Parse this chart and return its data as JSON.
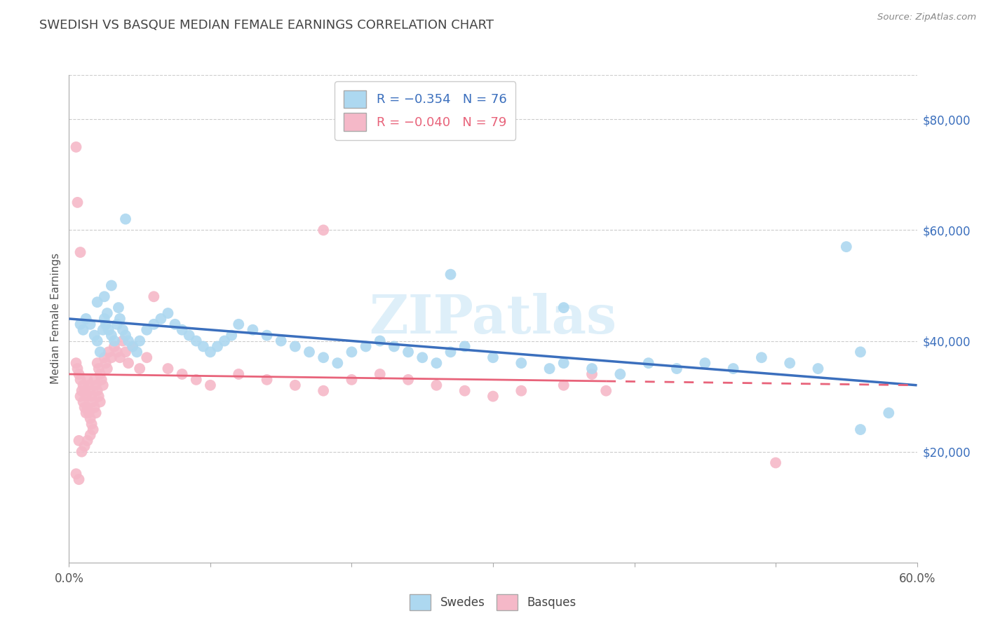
{
  "title": "SWEDISH VS BASQUE MEDIAN FEMALE EARNINGS CORRELATION CHART",
  "source": "Source: ZipAtlas.com",
  "ylabel": "Median Female Earnings",
  "watermark": "ZIPatlas",
  "legend_swedes": "R = −0.354   N = 76",
  "legend_basques": "R = −0.040   N = 79",
  "swedes_color": "#add8f0",
  "basques_color": "#f5b8c8",
  "swedes_line_color": "#3b6fbd",
  "basques_line_color": "#e8637a",
  "title_color": "#444444",
  "axis_label_color": "#555555",
  "right_axis_color": "#3b6fbd",
  "grid_color": "#cccccc",
  "background_color": "#ffffff",
  "xlim": [
    0.0,
    0.6
  ],
  "ylim": [
    0,
    88000
  ],
  "yticks": [
    20000,
    40000,
    60000,
    80000
  ],
  "ytick_labels_right": [
    "$20,000",
    "$40,000",
    "$60,000",
    "$80,000"
  ],
  "swedes_line_x0": 0.0,
  "swedes_line_y0": 44000,
  "swedes_line_x1": 0.6,
  "swedes_line_y1": 32000,
  "basques_line_x0": 0.0,
  "basques_line_y0": 34000,
  "basques_line_x1": 0.6,
  "basques_line_y1": 32000,
  "swedes_x": [
    0.008,
    0.01,
    0.012,
    0.015,
    0.018,
    0.02,
    0.022,
    0.024,
    0.025,
    0.026,
    0.027,
    0.028,
    0.03,
    0.032,
    0.034,
    0.036,
    0.038,
    0.04,
    0.042,
    0.045,
    0.048,
    0.05,
    0.055,
    0.06,
    0.065,
    0.07,
    0.075,
    0.08,
    0.085,
    0.09,
    0.095,
    0.1,
    0.105,
    0.11,
    0.115,
    0.12,
    0.13,
    0.14,
    0.15,
    0.16,
    0.17,
    0.18,
    0.19,
    0.2,
    0.21,
    0.22,
    0.23,
    0.24,
    0.25,
    0.26,
    0.27,
    0.28,
    0.3,
    0.32,
    0.34,
    0.35,
    0.37,
    0.39,
    0.41,
    0.43,
    0.45,
    0.47,
    0.49,
    0.51,
    0.53,
    0.55,
    0.56,
    0.58,
    0.02,
    0.025,
    0.03,
    0.035,
    0.04,
    0.27,
    0.35,
    0.56
  ],
  "swedes_y": [
    43000,
    42000,
    44000,
    43000,
    41000,
    40000,
    38000,
    42000,
    44000,
    43000,
    45000,
    42000,
    41000,
    40000,
    43000,
    44000,
    42000,
    41000,
    40000,
    39000,
    38000,
    40000,
    42000,
    43000,
    44000,
    45000,
    43000,
    42000,
    41000,
    40000,
    39000,
    38000,
    39000,
    40000,
    41000,
    43000,
    42000,
    41000,
    40000,
    39000,
    38000,
    37000,
    36000,
    38000,
    39000,
    40000,
    39000,
    38000,
    37000,
    36000,
    38000,
    39000,
    37000,
    36000,
    35000,
    36000,
    35000,
    34000,
    36000,
    35000,
    36000,
    35000,
    37000,
    36000,
    35000,
    57000,
    38000,
    27000,
    47000,
    48000,
    50000,
    46000,
    62000,
    52000,
    46000,
    24000
  ],
  "basques_x": [
    0.005,
    0.006,
    0.007,
    0.008,
    0.008,
    0.009,
    0.01,
    0.01,
    0.011,
    0.011,
    0.012,
    0.012,
    0.013,
    0.013,
    0.014,
    0.014,
    0.015,
    0.015,
    0.016,
    0.016,
    0.017,
    0.017,
    0.018,
    0.018,
    0.019,
    0.019,
    0.02,
    0.02,
    0.021,
    0.021,
    0.022,
    0.022,
    0.023,
    0.024,
    0.025,
    0.026,
    0.027,
    0.028,
    0.03,
    0.032,
    0.034,
    0.036,
    0.038,
    0.04,
    0.042,
    0.045,
    0.05,
    0.055,
    0.06,
    0.07,
    0.08,
    0.09,
    0.1,
    0.12,
    0.14,
    0.16,
    0.18,
    0.2,
    0.22,
    0.24,
    0.26,
    0.28,
    0.3,
    0.32,
    0.35,
    0.38,
    0.007,
    0.009,
    0.011,
    0.013,
    0.015,
    0.005,
    0.007,
    0.37,
    0.5,
    0.005,
    0.006,
    0.008,
    0.18
  ],
  "basques_y": [
    36000,
    35000,
    34000,
    33000,
    30000,
    31000,
    29000,
    32000,
    28000,
    31000,
    27000,
    30000,
    28000,
    33000,
    27000,
    32000,
    26000,
    31000,
    25000,
    30000,
    24000,
    29000,
    28000,
    33000,
    27000,
    32000,
    31000,
    36000,
    30000,
    35000,
    29000,
    34000,
    33000,
    32000,
    37000,
    36000,
    35000,
    38000,
    37000,
    39000,
    38000,
    37000,
    40000,
    38000,
    36000,
    39000,
    35000,
    37000,
    48000,
    35000,
    34000,
    33000,
    32000,
    34000,
    33000,
    32000,
    31000,
    33000,
    34000,
    33000,
    32000,
    31000,
    30000,
    31000,
    32000,
    31000,
    22000,
    20000,
    21000,
    22000,
    23000,
    16000,
    15000,
    34000,
    18000,
    75000,
    65000,
    56000,
    60000
  ]
}
